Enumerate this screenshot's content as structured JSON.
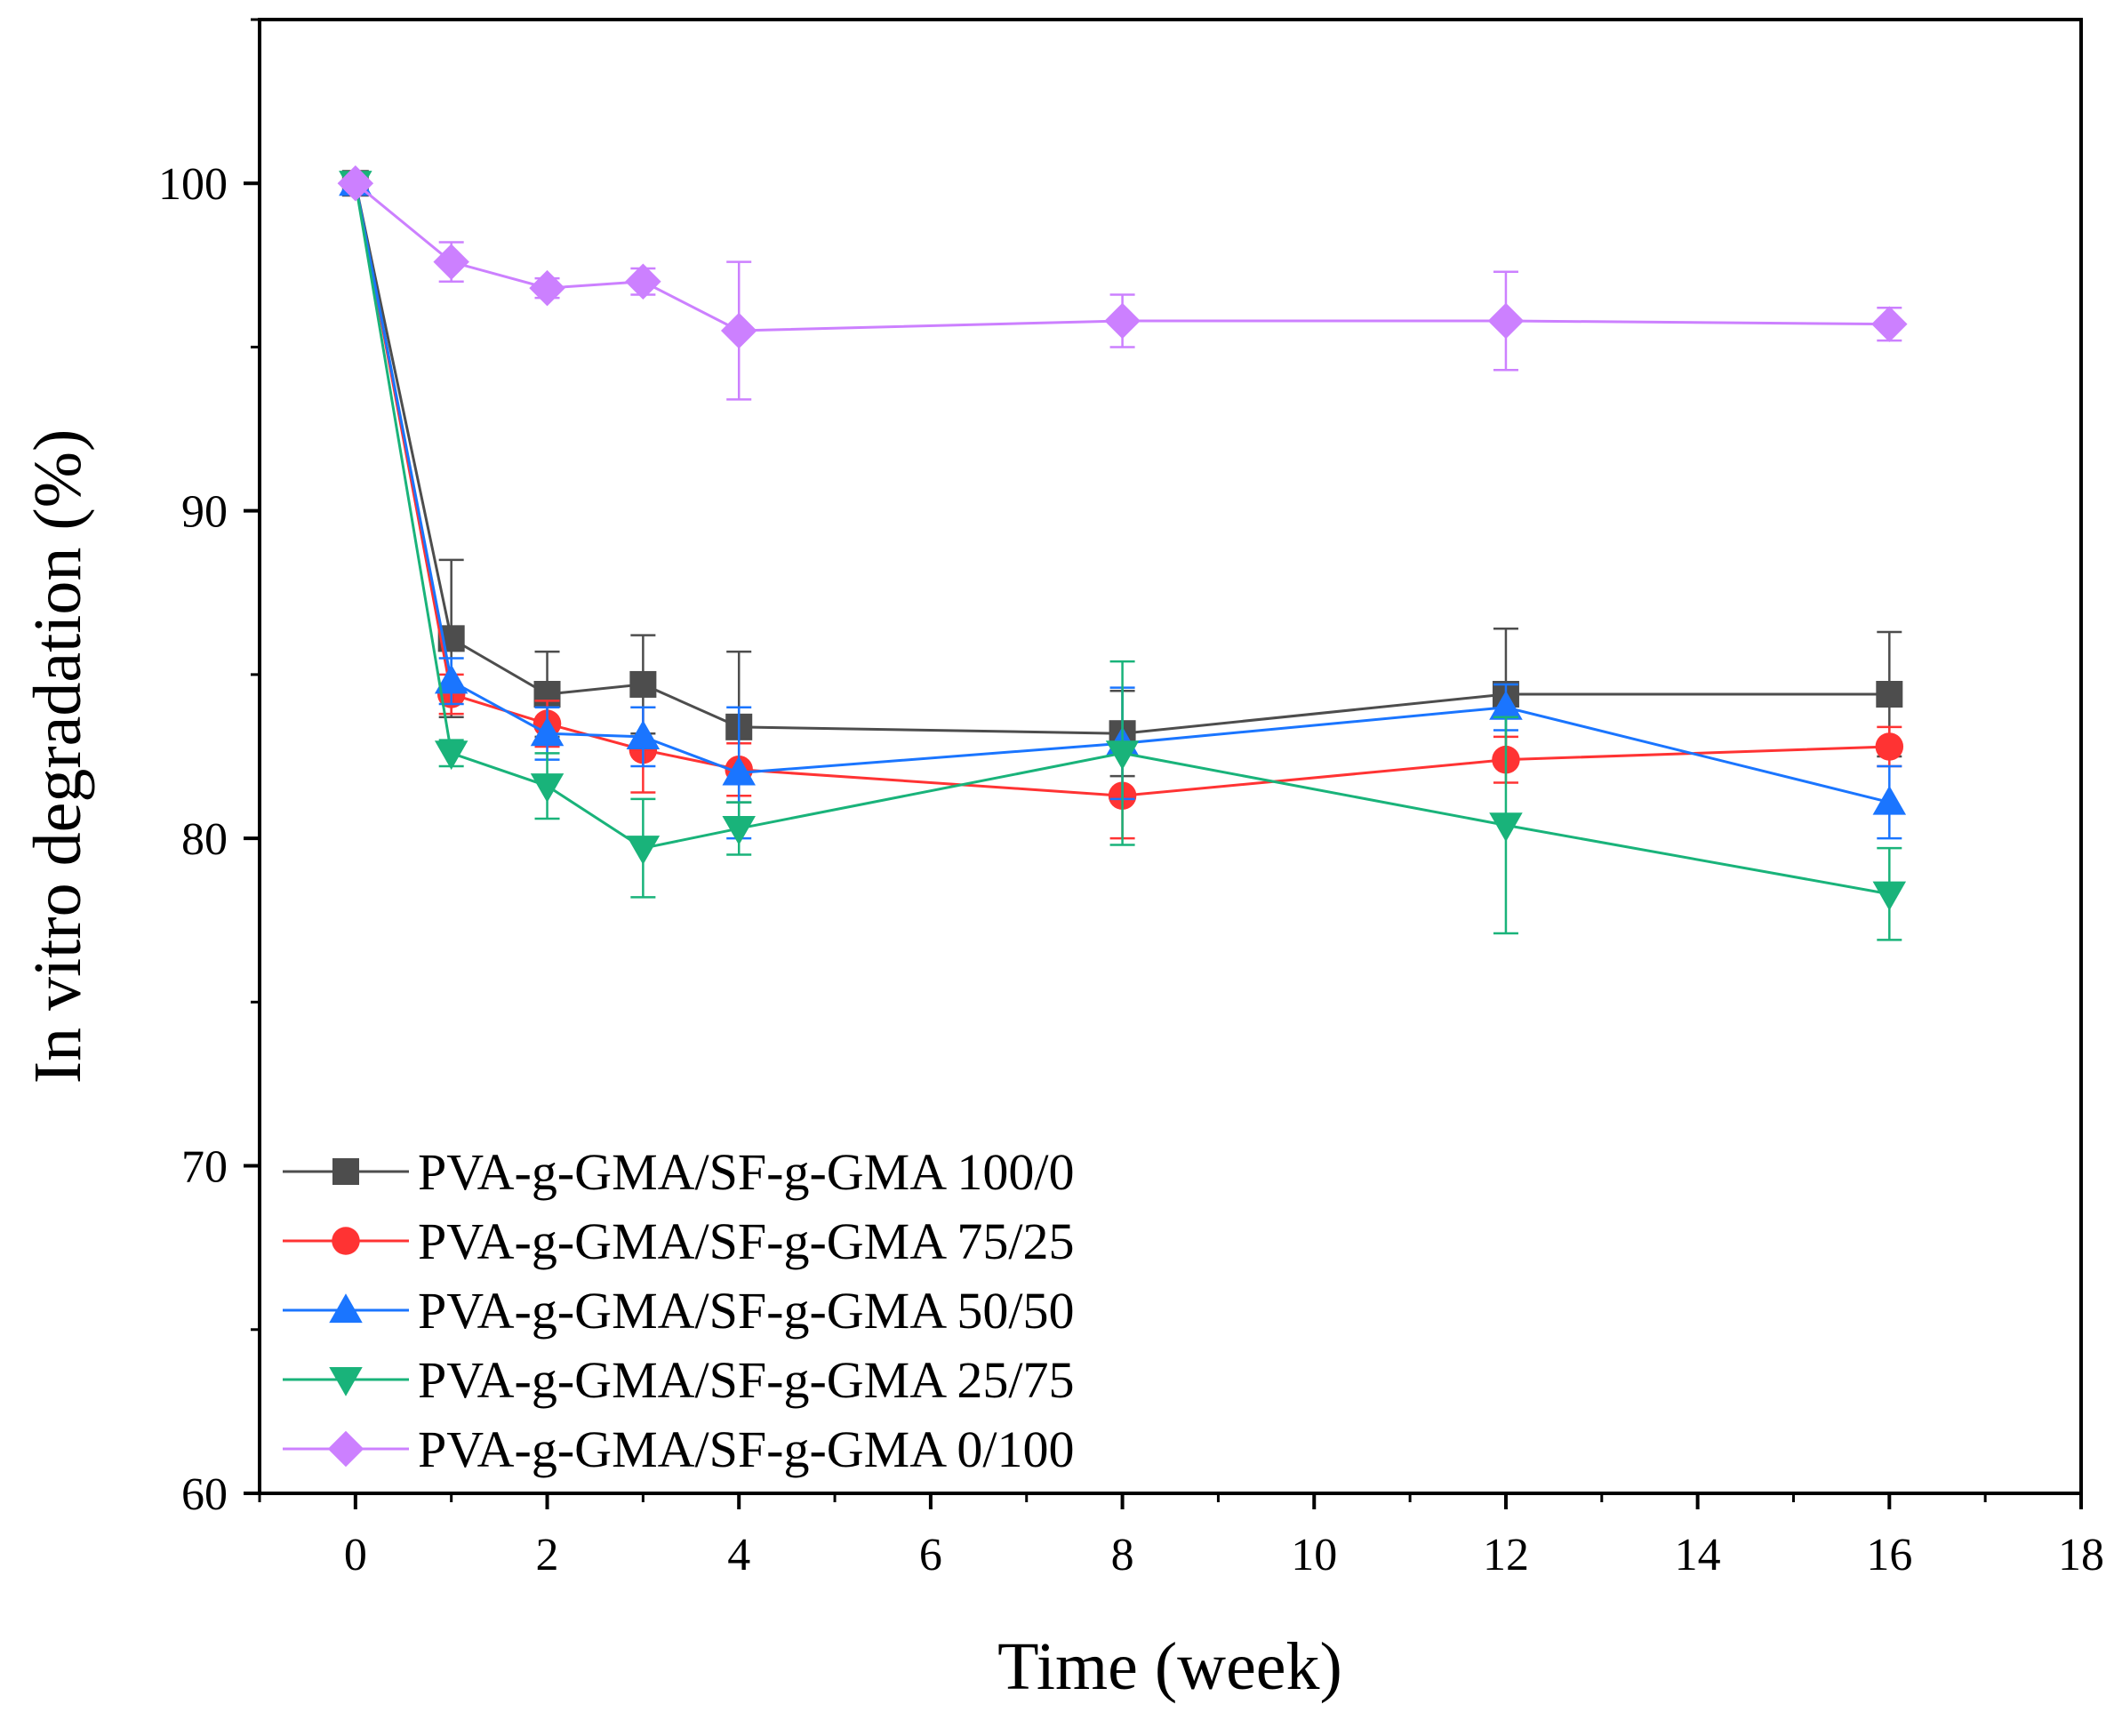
{
  "chart_data": {
    "type": "line",
    "title": "",
    "xlabel": "Time (week)",
    "ylabel": "In vitro degradation (%)",
    "xlim": [
      -1,
      18
    ],
    "ylim": [
      60,
      105
    ],
    "x_ticks": [
      0,
      2,
      4,
      6,
      8,
      10,
      12,
      14,
      16,
      18
    ],
    "y_ticks": [
      60,
      70,
      80,
      90,
      100
    ],
    "grid": false,
    "legend_position": "bottom-left",
    "x": [
      0,
      1,
      2,
      3,
      4,
      8,
      12,
      16
    ],
    "series": [
      {
        "name": "PVA-g-GMA/SF-g-GMA 100/0",
        "color": "#4d4d4d",
        "marker": "square",
        "values": [
          100,
          86.1,
          84.4,
          84.7,
          83.4,
          83.2,
          84.4,
          84.4
        ],
        "errors": [
          0,
          2.4,
          1.3,
          1.5,
          2.3,
          1.3,
          2.0,
          1.9
        ]
      },
      {
        "name": "PVA-g-GMA/SF-g-GMA 75/25",
        "color": "#ff3333",
        "marker": "circle",
        "values": [
          100,
          84.4,
          83.5,
          82.7,
          82.1,
          81.3,
          82.4,
          82.8
        ],
        "errors": [
          0,
          0.6,
          0.7,
          1.3,
          0.8,
          1.3,
          0.7,
          0.6
        ]
      },
      {
        "name": "PVA-g-GMA/SF-g-GMA 50/50",
        "color": "#1a75ff",
        "marker": "triangle-up",
        "values": [
          100,
          84.8,
          83.2,
          83.1,
          82.0,
          82.9,
          84.0,
          81.1
        ],
        "errors": [
          0,
          0.7,
          0.8,
          0.9,
          2.0,
          1.7,
          0.7,
          1.1
        ]
      },
      {
        "name": "PVA-g-GMA/SF-g-GMA 25/75",
        "color": "#19b37a",
        "marker": "triangle-down",
        "values": [
          100,
          82.6,
          81.6,
          79.7,
          80.3,
          82.6,
          80.4,
          78.3
        ],
        "errors": [
          0,
          0.4,
          1.0,
          1.5,
          0.8,
          2.8,
          3.3,
          1.4
        ]
      },
      {
        "name": "PVA-g-GMA/SF-g-GMA 0/100",
        "color": "#cc80ff",
        "marker": "diamond",
        "values": [
          100,
          97.6,
          96.8,
          97.0,
          95.5,
          95.8,
          95.8,
          95.7
        ],
        "errors": [
          0,
          0.6,
          0.3,
          0.4,
          2.1,
          0.8,
          1.5,
          0.5
        ]
      }
    ]
  }
}
